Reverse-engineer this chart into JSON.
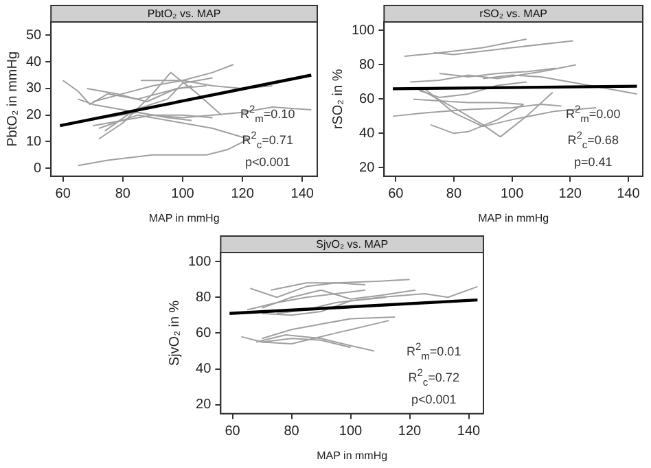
{
  "chart_data": [
    {
      "type": "line",
      "title": "PbtO₂ vs. MAP",
      "xlabel": "MAP in mmHg",
      "ylabel": "PbtO₂ in mmHg",
      "xlim": [
        56,
        145
      ],
      "ylim": [
        -3,
        55
      ],
      "xticks": [
        60,
        80,
        100,
        120,
        140
      ],
      "yticks": [
        0,
        10,
        20,
        30,
        40,
        50
      ],
      "grid": false,
      "legend": false,
      "marker": "none",
      "line_style": "solid",
      "annotations": [
        "R$^{2}$$_{m}$=0.10",
        "R$^{2}$$_{c}$=0.71",
        "p<0.001"
      ],
      "series": [
        {
          "color": "#000000",
          "x": [
            59,
            143
          ],
          "values": [
            16,
            35
          ]
        },
        {
          "color": "#a0a0a0",
          "x": [
            60,
            65,
            69,
            75,
            85,
            95,
            103
          ],
          "values": [
            33,
            29,
            24,
            28,
            26,
            29,
            31
          ]
        },
        {
          "color": "#a0a0a0",
          "x": [
            68,
            78,
            88,
            98,
            108
          ],
          "values": [
            30,
            28,
            25,
            30,
            31
          ]
        },
        {
          "color": "#a0a0a0",
          "x": [
            70,
            80,
            90,
            100,
            110,
            117
          ],
          "values": [
            25,
            28,
            31,
            33,
            36,
            39
          ]
        },
        {
          "color": "#a0a0a0",
          "x": [
            72,
            80,
            90,
            96,
            105,
            113
          ],
          "values": [
            11,
            17,
            28,
            36,
            28,
            20
          ]
        },
        {
          "color": "#a0a0a0",
          "x": [
            74,
            84,
            95,
            100,
            110
          ],
          "values": [
            14,
            22,
            26,
            32,
            34
          ]
        },
        {
          "color": "#a0a0a0",
          "x": [
            65,
            70,
            80,
            90,
            100,
            110
          ],
          "values": [
            26,
            24,
            22,
            20,
            20,
            19
          ]
        },
        {
          "color": "#a0a0a0",
          "x": [
            70,
            80,
            90,
            100,
            110,
            120,
            130,
            143
          ],
          "values": [
            16,
            18,
            20,
            19,
            20,
            21,
            23,
            22
          ]
        },
        {
          "color": "#a0a0a0",
          "x": [
            72,
            85,
            100,
            110,
            122
          ],
          "values": [
            15,
            20,
            17,
            15,
            11
          ]
        },
        {
          "color": "#a0a0a0",
          "x": [
            65,
            75,
            90,
            100,
            108,
            115,
            122
          ],
          "values": [
            1,
            3,
            5,
            5,
            5,
            7,
            11
          ]
        },
        {
          "color": "#a0a0a0",
          "x": [
            74,
            85,
            95,
            103
          ],
          "values": [
            19,
            21,
            19,
            18
          ]
        },
        {
          "color": "#a0a0a0",
          "x": [
            86,
            100,
            110,
            120,
            130
          ],
          "values": [
            33,
            33,
            31,
            30,
            31
          ]
        }
      ]
    },
    {
      "type": "line",
      "title": "rSO₂ vs. MAP",
      "xlabel": "MAP in mmHg",
      "ylabel": "rSO₂ in %",
      "xlim": [
        56,
        145
      ],
      "ylim": [
        15,
        105
      ],
      "xticks": [
        60,
        80,
        100,
        120,
        140
      ],
      "yticks": [
        20,
        40,
        60,
        80,
        100
      ],
      "grid": false,
      "legend": false,
      "marker": "none",
      "line_style": "solid",
      "annotations": [
        "R$^{2}$$_{m}$=0.00",
        "R$^{2}$$_{c}$=0.68",
        "p=0.41"
      ],
      "series": [
        {
          "color": "#000000",
          "x": [
            59,
            143
          ],
          "values": [
            66,
            67.5
          ]
        },
        {
          "color": "#a0a0a0",
          "x": [
            63,
            75,
            90,
            105
          ],
          "values": [
            85,
            87,
            90,
            95
          ]
        },
        {
          "color": "#a0a0a0",
          "x": [
            73,
            80,
            100,
            121
          ],
          "values": [
            87,
            86,
            90,
            94
          ]
        },
        {
          "color": "#a0a0a0",
          "x": [
            65,
            75,
            85,
            95,
            110,
            122
          ],
          "values": [
            70,
            71,
            74,
            72,
            76,
            80
          ]
        },
        {
          "color": "#a0a0a0",
          "x": [
            75,
            85,
            95,
            105,
            115
          ],
          "values": [
            75,
            73,
            75,
            76,
            78
          ]
        },
        {
          "color": "#a0a0a0",
          "x": [
            90,
            100,
            110,
            120,
            130,
            143
          ],
          "values": [
            72,
            74,
            73,
            70,
            67,
            63
          ]
        },
        {
          "color": "#a0a0a0",
          "x": [
            68,
            75,
            85,
            95,
            105
          ],
          "values": [
            65,
            61,
            63,
            68,
            70
          ]
        },
        {
          "color": "#a0a0a0",
          "x": [
            66,
            75,
            85,
            95,
            104
          ],
          "values": [
            60,
            59,
            58,
            58,
            57
          ]
        },
        {
          "color": "#a0a0a0",
          "x": [
            59,
            70,
            85,
            100,
            110,
            117
          ],
          "values": [
            50,
            52,
            54,
            55,
            57,
            56
          ]
        },
        {
          "color": "#a0a0a0",
          "x": [
            70,
            80,
            90,
            100,
            115,
            129
          ],
          "values": [
            66,
            52,
            44,
            48,
            53,
            55
          ]
        },
        {
          "color": "#a0a0a0",
          "x": [
            68,
            80,
            90,
            96,
            105,
            114
          ],
          "values": [
            66,
            55,
            45,
            38,
            50,
            64
          ]
        },
        {
          "color": "#a0a0a0",
          "x": [
            72,
            80,
            85,
            95,
            104
          ],
          "values": [
            45,
            40,
            41,
            48,
            57
          ]
        }
      ]
    },
    {
      "type": "line",
      "title": "SjvO₂ vs. MAP",
      "xlabel": "MAP in mmHg",
      "ylabel": "SjvO₂ in %",
      "xlim": [
        56,
        145
      ],
      "ylim": [
        15,
        105
      ],
      "xticks": [
        60,
        80,
        100,
        120,
        140
      ],
      "yticks": [
        20,
        40,
        60,
        80,
        100
      ],
      "grid": false,
      "legend": false,
      "marker": "none",
      "line_style": "solid",
      "annotations": [
        "R$^{2}$$_{m}$=0.01",
        "R$^{2}$$_{c}$=0.72",
        "p<0.001"
      ],
      "series": [
        {
          "color": "#000000",
          "x": [
            59,
            143
          ],
          "values": [
            71,
            78.5
          ]
        },
        {
          "color": "#a0a0a0",
          "x": [
            66,
            75,
            85,
            95,
            105
          ],
          "values": [
            85,
            80,
            86,
            88,
            87
          ]
        },
        {
          "color": "#a0a0a0",
          "x": [
            73,
            85,
            95,
            110,
            120
          ],
          "values": [
            84,
            88,
            88,
            89,
            90
          ]
        },
        {
          "color": "#a0a0a0",
          "x": [
            65,
            75,
            85,
            95,
            105
          ],
          "values": [
            73,
            77,
            80,
            82,
            84
          ]
        },
        {
          "color": "#a0a0a0",
          "x": [
            70,
            80,
            90,
            100,
            110,
            122
          ],
          "values": [
            74,
            80,
            84,
            79,
            81,
            84
          ]
        },
        {
          "color": "#a0a0a0",
          "x": [
            75,
            85,
            95,
            110,
            125,
            133,
            143
          ],
          "values": [
            71,
            73,
            77,
            80,
            82,
            80,
            86
          ]
        },
        {
          "color": "#a0a0a0",
          "x": [
            70,
            80,
            90,
            100,
            112
          ],
          "values": [
            71,
            70,
            72,
            78,
            80
          ]
        },
        {
          "color": "#a0a0a0",
          "x": [
            63,
            70,
            80,
            90,
            100
          ],
          "values": [
            58,
            55,
            57,
            56,
            52
          ]
        },
        {
          "color": "#a0a0a0",
          "x": [
            68,
            78,
            90,
            100,
            108
          ],
          "values": [
            55,
            59,
            57,
            53,
            50
          ]
        },
        {
          "color": "#a0a0a0",
          "x": [
            70,
            80,
            90,
            100,
            115
          ],
          "values": [
            57,
            62,
            65,
            68,
            69
          ]
        },
        {
          "color": "#a0a0a0",
          "x": [
            70,
            80,
            95,
            113
          ],
          "values": [
            55,
            54,
            60,
            67
          ]
        }
      ]
    }
  ]
}
